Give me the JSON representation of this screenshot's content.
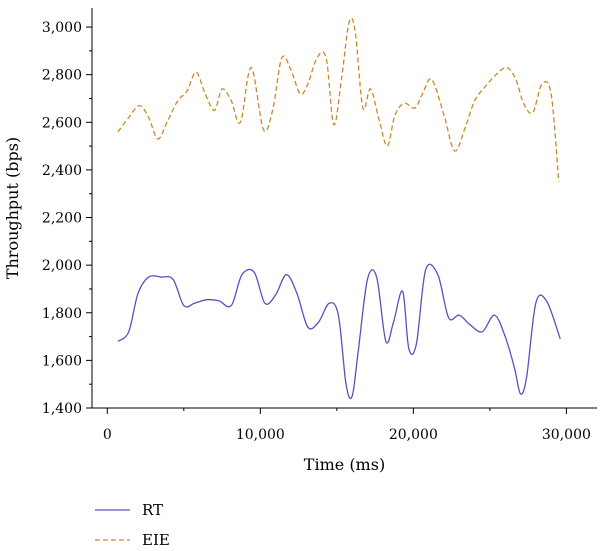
{
  "chart_data": {
    "type": "line",
    "title": "",
    "xlabel": "Time (ms)",
    "ylabel": "Throughput (bps)",
    "xlim": [
      -1000,
      32000
    ],
    "ylim": [
      1400,
      3080
    ],
    "x_ticks": [
      0,
      10000,
      20000,
      30000
    ],
    "x_tick_labels": [
      "0",
      "10,000",
      "20,000",
      "30,000"
    ],
    "y_ticks": [
      1400,
      1600,
      1800,
      2000,
      2200,
      2400,
      2600,
      2800,
      3000
    ],
    "y_tick_labels": [
      "1,400",
      "1,600",
      "1,800",
      "2,000",
      "2,200",
      "2,400",
      "2,600",
      "2,800",
      "3,000"
    ],
    "grid": false,
    "legend_position": "bottom-left",
    "series": [
      {
        "name": "RT",
        "color": "#5b4fc0",
        "dash": "solid",
        "x": [
          700,
          1400,
          2000,
          2700,
          3500,
          4300,
          5000,
          5700,
          6500,
          7300,
          8100,
          8800,
          9600,
          10300,
          11000,
          11700,
          12400,
          13100,
          13800,
          14500,
          15100,
          15600,
          16000,
          16400,
          17000,
          17600,
          18200,
          18700,
          19300,
          19700,
          20200,
          20800,
          21600,
          22300,
          23000,
          23700,
          24500,
          25300,
          26000,
          26600,
          27000,
          27400,
          28000,
          28700,
          29600
        ],
        "y": [
          1680,
          1720,
          1880,
          1950,
          1950,
          1940,
          1830,
          1840,
          1855,
          1850,
          1830,
          1960,
          1970,
          1840,
          1875,
          1960,
          1880,
          1740,
          1760,
          1840,
          1790,
          1500,
          1450,
          1640,
          1940,
          1950,
          1680,
          1760,
          1890,
          1650,
          1670,
          1980,
          1960,
          1780,
          1790,
          1750,
          1720,
          1790,
          1700,
          1570,
          1460,
          1530,
          1840,
          1850,
          1690
        ]
      },
      {
        "name": "EIE",
        "color": "#c88a22",
        "dash": "dashed",
        "x": [
          700,
          1400,
          2100,
          2700,
          3300,
          3900,
          4600,
          5200,
          5800,
          6400,
          7000,
          7500,
          8100,
          8700,
          9400,
          10200,
          10800,
          11400,
          12000,
          12600,
          13100,
          13700,
          14300,
          14800,
          15300,
          15800,
          16200,
          16700,
          17200,
          17800,
          18300,
          18800,
          19400,
          20100,
          20600,
          21200,
          22000,
          22700,
          23400,
          24000,
          24700,
          25400,
          26100,
          26700,
          27200,
          27800,
          28400,
          29000,
          29500
        ],
        "y": [
          2560,
          2620,
          2670,
          2620,
          2530,
          2600,
          2690,
          2730,
          2810,
          2720,
          2650,
          2740,
          2690,
          2600,
          2830,
          2570,
          2650,
          2870,
          2820,
          2720,
          2760,
          2870,
          2870,
          2590,
          2780,
          3020,
          2980,
          2660,
          2740,
          2600,
          2500,
          2630,
          2680,
          2660,
          2720,
          2780,
          2630,
          2480,
          2580,
          2690,
          2750,
          2800,
          2830,
          2780,
          2680,
          2640,
          2760,
          2720,
          2350
        ]
      }
    ]
  }
}
